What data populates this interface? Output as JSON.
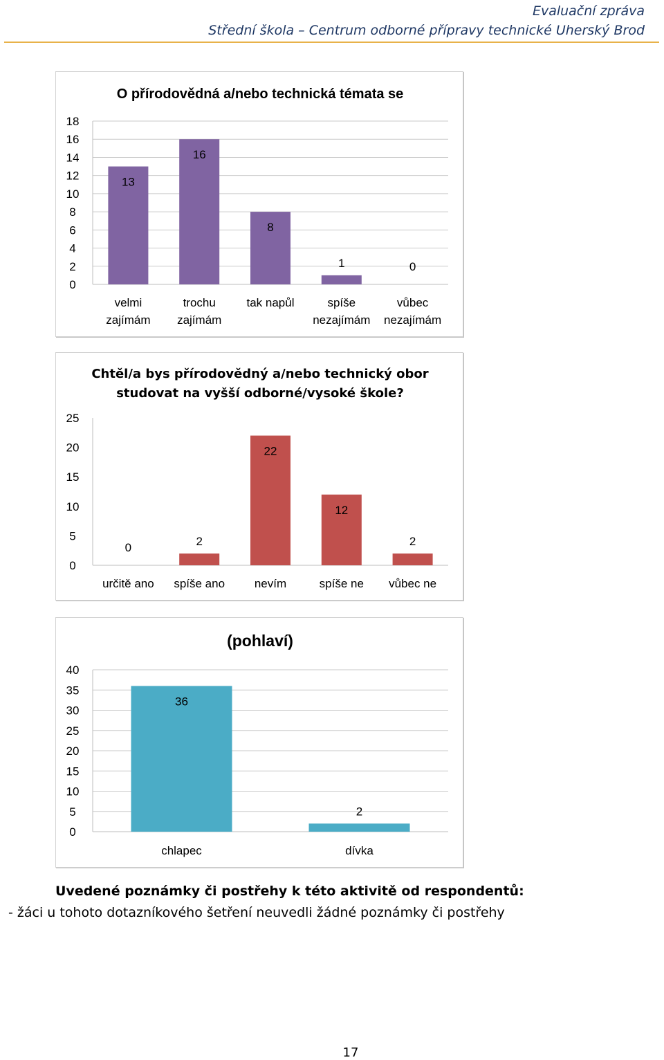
{
  "header": {
    "line1": "Evaluační zpráva",
    "line2": "Střední škola – Centrum odborné přípravy technické Uherský Brod"
  },
  "chart_data": [
    {
      "type": "bar",
      "title": "O přírodovědná a/nebo technická témata se",
      "categories": [
        "velmi zajímám",
        "trochu zajímám",
        "tak napůl",
        "spíše nezajímám",
        "vůbec nezajímám"
      ],
      "values": [
        13,
        16,
        8,
        1,
        0
      ],
      "yticks": [
        0,
        2,
        4,
        6,
        8,
        10,
        12,
        14,
        16,
        18
      ],
      "ylim": [
        0,
        18
      ],
      "color": "#8064a2",
      "grid": true
    },
    {
      "type": "bar",
      "title": "Chtěl/a bys přírodovědný a/nebo technický obor studovat na vyšší odborné/vysoké škole?",
      "categories": [
        "určitě ano",
        "spíše ano",
        "nevím",
        "spíše ne",
        "vůbec ne"
      ],
      "values": [
        0,
        2,
        22,
        12,
        2
      ],
      "yticks": [
        0,
        5,
        10,
        15,
        20,
        25
      ],
      "ylim": [
        0,
        25
      ],
      "color": "#c0504d",
      "grid": false
    },
    {
      "type": "bar",
      "title": "(pohlaví)",
      "categories": [
        "chlapec",
        "dívka"
      ],
      "values": [
        36,
        2
      ],
      "yticks": [
        0,
        5,
        10,
        15,
        20,
        25,
        30,
        35,
        40
      ],
      "ylim": [
        0,
        40
      ],
      "color": "#4bacc6",
      "grid": true
    }
  ],
  "notes": {
    "heading": "Uvedené poznámky či postřehy k této aktivitě od respondentů:",
    "line": "- žáci u tohoto dotazníkového šetření neuvedli žádné poznámky či postřehy"
  },
  "page_number": "17"
}
